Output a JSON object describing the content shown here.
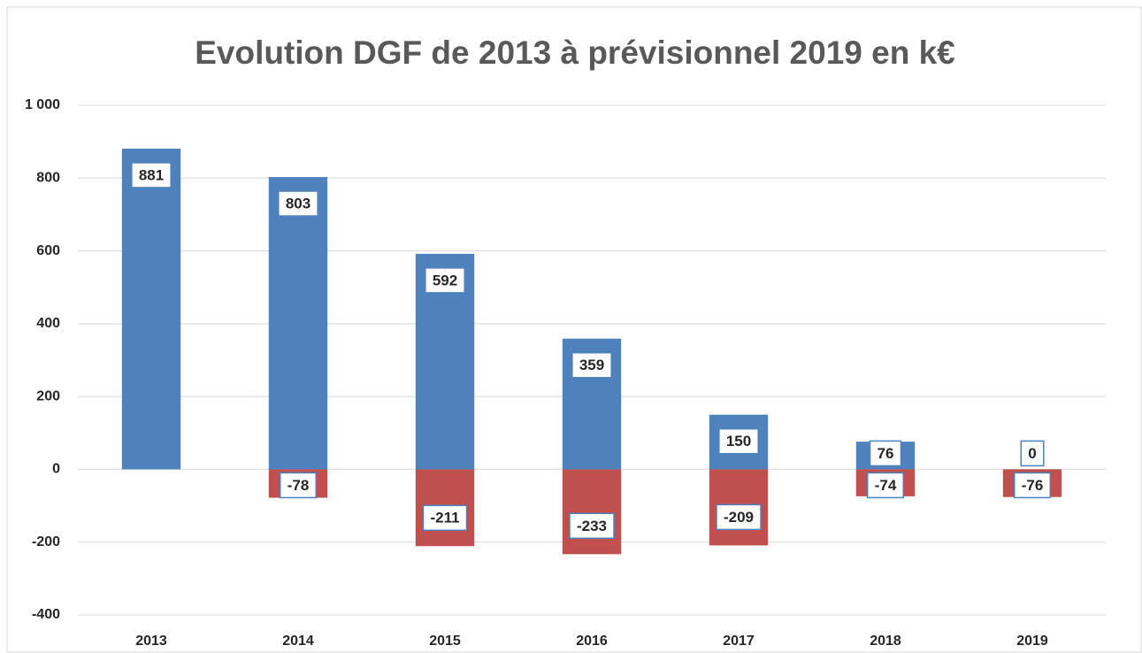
{
  "chart_data": {
    "type": "bar",
    "title": "Evolution DGF de 2013 à prévisionnel 2019 en k€",
    "categories": [
      "2013",
      "2014",
      "2015",
      "2016",
      "2017",
      "2018",
      "2019"
    ],
    "series": [
      {
        "color": "#4f81bd",
        "values": [
          881,
          803,
          592,
          359,
          150,
          76,
          0
        ]
      },
      {
        "color": "#c0504d",
        "values": [
          null,
          -78,
          -211,
          -233,
          -209,
          -74,
          -76
        ]
      }
    ],
    "ylim": [
      -400,
      1000
    ],
    "yticks": [
      -400,
      -200,
      0,
      200,
      400,
      600,
      800,
      {
        "value": 1000,
        "label": "1 000"
      }
    ],
    "grid": true
  }
}
